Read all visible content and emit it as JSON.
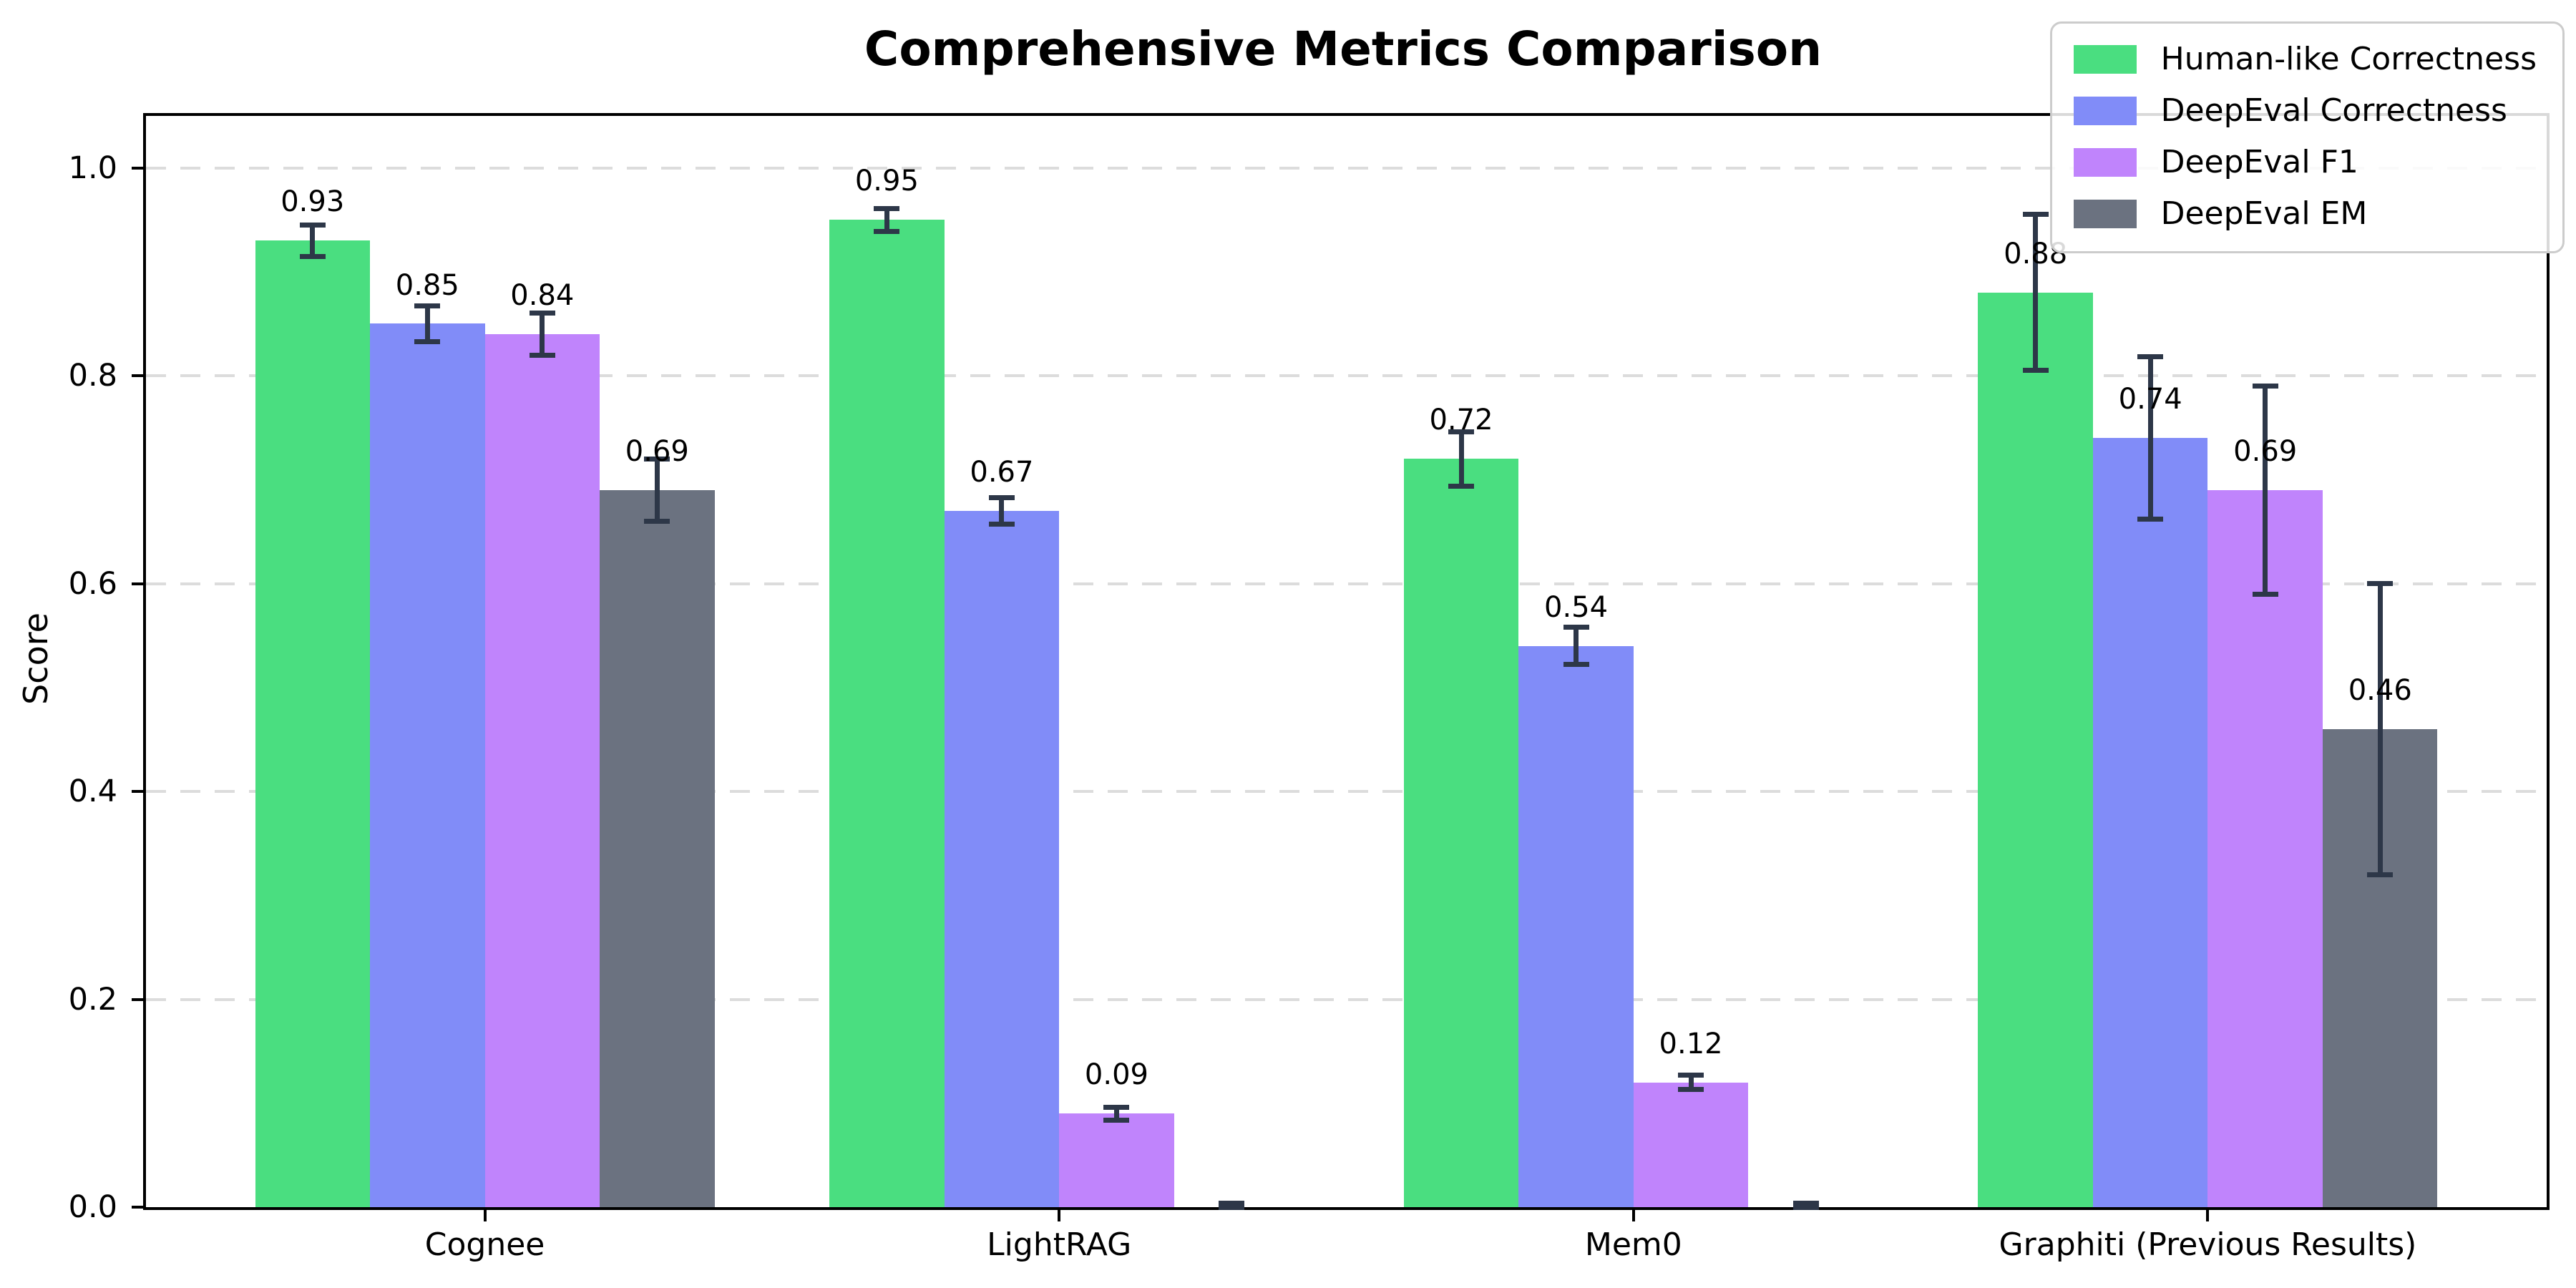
{
  "figure": {
    "title": "Comprehensive Metrics Comparison"
  },
  "chart_data": {
    "type": "bar",
    "title": "Comprehensive Metrics Comparison",
    "xlabel": "",
    "ylabel": "Score",
    "categories": [
      "Cognee",
      "LightRAG",
      "Mem0",
      "Graphiti (Previous Results)"
    ],
    "ylim": [
      0,
      1.05
    ],
    "yticks": [
      0.0,
      0.2,
      0.4,
      0.6,
      0.8,
      1.0
    ],
    "ytick_labels": [
      "0.0",
      "0.2",
      "0.4",
      "0.6",
      "0.8",
      "1.0"
    ],
    "grid": {
      "axis": "y",
      "style": "dashed",
      "color": "#dcdcdc"
    },
    "legend_position": "upper right",
    "bar_label_offset": 0.022,
    "error_bar_color": "#2d3748",
    "series": [
      {
        "name": "Human-like Correctness",
        "color": "#4ade80",
        "values": [
          0.93,
          0.95,
          0.72,
          0.88
        ],
        "errors": [
          0.015,
          0.011,
          0.026,
          0.075
        ],
        "labels": [
          "0.93",
          "0.95",
          "0.72",
          "0.88"
        ]
      },
      {
        "name": "DeepEval Correctness",
        "color": "#818cf8",
        "values": [
          0.85,
          0.67,
          0.54,
          0.74
        ],
        "errors": [
          0.017,
          0.013,
          0.018,
          0.078
        ],
        "labels": [
          "0.85",
          "0.67",
          "0.54",
          "0.74"
        ]
      },
      {
        "name": "DeepEval F1",
        "color": "#c084fc",
        "values": [
          0.84,
          0.09,
          0.12,
          0.69
        ],
        "errors": [
          0.02,
          0.006,
          0.007,
          0.1
        ],
        "labels": [
          "0.84",
          "0.09",
          "0.12",
          "0.69"
        ]
      },
      {
        "name": "DeepEval EM",
        "color": "#6b7280",
        "values": [
          0.69,
          0.0,
          0.0,
          0.46
        ],
        "errors": [
          0.03,
          0.004,
          0.004,
          0.14
        ],
        "labels": [
          "0.69",
          "",
          "",
          "0.46"
        ]
      }
    ]
  }
}
